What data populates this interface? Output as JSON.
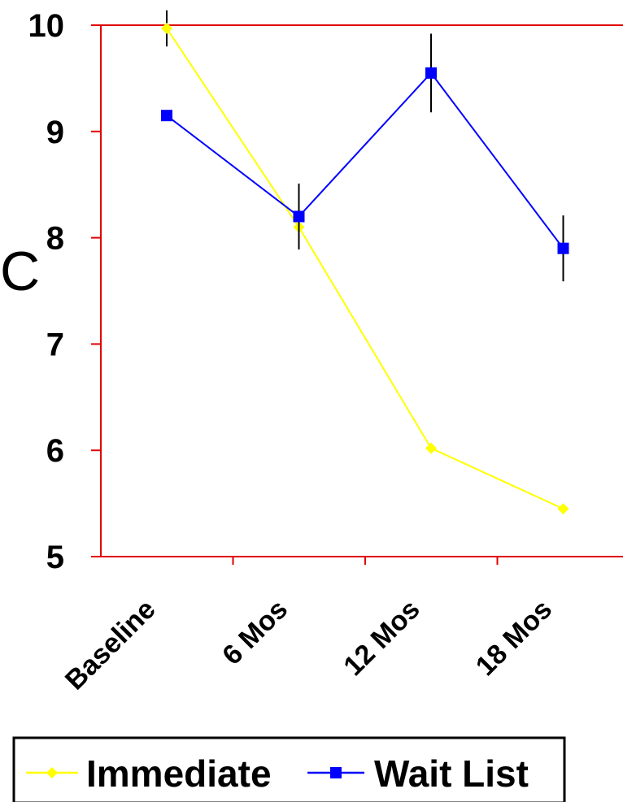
{
  "chart_data": {
    "type": "line",
    "ylabel": "C",
    "ylim": [
      5,
      10
    ],
    "yticks": [
      5,
      6,
      7,
      8,
      9,
      10
    ],
    "categories": [
      "Baseline",
      "6 Mos",
      "12 Mos",
      "18 Mos"
    ],
    "grid": "top border line at 10",
    "axis_color": "#e00000",
    "series": [
      {
        "name": "Immediate",
        "color": "#ffff00",
        "marker": "diamond",
        "values": [
          9.97,
          8.1,
          6.02,
          5.45
        ],
        "error": [
          0.17,
          null,
          null,
          null
        ]
      },
      {
        "name": "Wait List",
        "color": "#0000ff",
        "marker": "square",
        "values": [
          9.15,
          8.2,
          9.55,
          7.9
        ],
        "error": [
          null,
          0.31,
          0.37,
          0.31
        ]
      }
    ],
    "legend": {
      "position": "bottom"
    }
  }
}
